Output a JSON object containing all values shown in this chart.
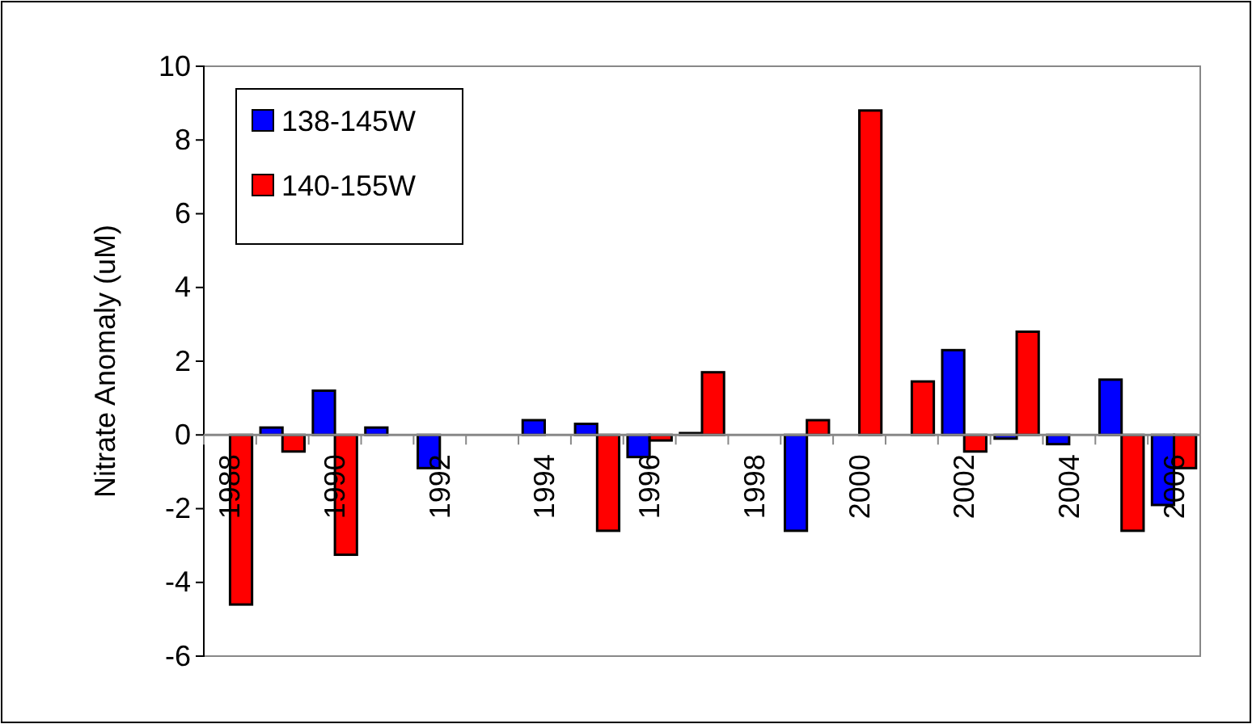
{
  "chart_data": {
    "type": "bar",
    "ylabel": "Nitrate Anomaly (uM)",
    "categories": [
      "1988",
      null,
      "1990",
      null,
      "1992",
      null,
      "1994",
      null,
      "1996",
      null,
      "1998",
      null,
      "2000",
      null,
      "2002",
      null,
      "2004",
      null,
      "2006"
    ],
    "series": [
      {
        "name": "138-145W",
        "color": "#0000ff",
        "values": [
          null,
          0.2,
          1.2,
          0.2,
          -0.9,
          null,
          0.4,
          0.3,
          -0.6,
          0.05,
          null,
          -2.6,
          null,
          null,
          2.3,
          -0.1,
          -0.25,
          1.5,
          -1.9
        ]
      },
      {
        "name": "140-155W",
        "color": "#ff0000",
        "values": [
          -4.6,
          -0.45,
          -3.25,
          null,
          null,
          null,
          null,
          -2.6,
          -0.15,
          1.7,
          null,
          0.4,
          8.8,
          1.45,
          -0.45,
          2.8,
          null,
          -2.6,
          -0.9
        ]
      }
    ],
    "ylim": [
      -6,
      10
    ],
    "yticks": [
      -6,
      -4,
      -2,
      0,
      2,
      4,
      6,
      8,
      10
    ],
    "legend": "top left"
  }
}
